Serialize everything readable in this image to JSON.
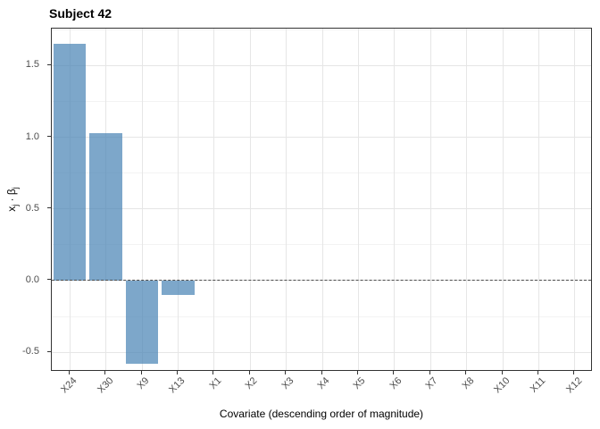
{
  "title": "Subject 42",
  "chart_data": {
    "type": "bar",
    "title": "Subject 42",
    "categories": [
      "X24",
      "X30",
      "X9",
      "X13",
      "X1",
      "X2",
      "X3",
      "X4",
      "X5",
      "X6",
      "X7",
      "X8",
      "X10",
      "X11",
      "X12"
    ],
    "values": [
      1.65,
      1.03,
      -0.58,
      -0.1,
      0,
      0,
      0,
      0,
      0,
      0,
      0,
      0,
      0,
      0,
      0
    ],
    "xlabel": "Covariate (descending order of magnitude)",
    "ylabel": "x_j · β_j",
    "ylabel_rich": {
      "base1": "x",
      "sub1": "j",
      "dot": " · ",
      "base2": "β",
      "sub2": "j"
    },
    "yticks": [
      -0.5,
      0.0,
      0.5,
      1.0,
      1.5
    ],
    "ytick_labels": [
      "-0.5",
      "0.0",
      "0.5",
      "1.0",
      "1.5"
    ],
    "yticks_minor": [
      -0.25,
      0.25,
      0.75,
      1.25,
      1.75
    ],
    "ylim": [
      -0.636,
      1.758
    ],
    "grid": true,
    "legend": "none",
    "zero_line": "dashed",
    "colors": {
      "bar_fill": "#4682B4",
      "bar_opacity": 0.7,
      "grid_major": "#E6E6E6",
      "grid_minor": "#F3F3F3",
      "panel_border": "#333333",
      "zero_line": "#4d4d4d",
      "tick_label": "#4d4d4d",
      "title_text": "#000000"
    }
  }
}
